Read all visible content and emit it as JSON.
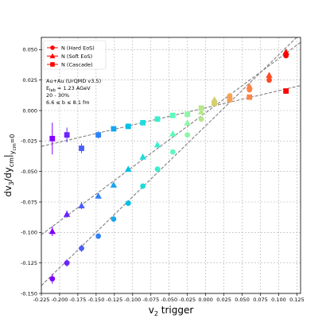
{
  "chart_data": {
    "type": "scatter",
    "xlabel": "v_2 trigger",
    "ylabel": "dv_3/dy_cm|_{y_cm}=0",
    "xlim": [
      -0.225,
      0.13
    ],
    "ylim": [
      -0.15,
      0.06
    ],
    "xticks": [
      "-0.225",
      "-0.200",
      "-0.175",
      "-0.150",
      "-0.125",
      "-0.100",
      "-0.075",
      "-0.050",
      "-0.025",
      "0.000",
      "0.025",
      "0.050",
      "0.075",
      "0.100",
      "0.125"
    ],
    "yticks": [
      "0.050",
      "0.025",
      "0.000",
      "-0.025",
      "-0.050",
      "-0.075",
      "-0.100",
      "-0.125",
      "-0.150"
    ],
    "grid": true,
    "legend_position": "top-left",
    "annotation": [
      "Au+Au (UrQMD v3.5)",
      "E_lab = 1.23 AGeV",
      "20 - 30%",
      "6.6 ≤ b ≤ 8.1 fm"
    ],
    "x": [
      -0.21,
      -0.19,
      -0.17,
      -0.147,
      -0.126,
      -0.106,
      -0.086,
      -0.066,
      -0.045,
      -0.025,
      -0.006,
      0.012,
      0.033,
      0.06,
      0.087,
      0.11
    ],
    "series": [
      {
        "name": "N (Hard EoS)",
        "marker": "circle",
        "y": [
          -0.138,
          -0.125,
          -0.113,
          -0.103,
          -0.089,
          -0.076,
          -0.062,
          -0.048,
          -0.034,
          -0.02,
          -0.007,
          0.006,
          0.012,
          0.017,
          0.025,
          0.045
        ],
        "yerr": [
          0.004,
          0.003,
          0.003,
          0.002,
          0.002,
          0.002,
          0.002,
          0.002,
          0.002,
          0.002,
          0.002,
          0.002,
          0.002,
          0.002,
          0.002,
          0.002
        ]
      },
      {
        "name": "N (Soft EoS)",
        "marker": "triangle",
        "y": [
          -0.099,
          -0.085,
          -0.078,
          -0.07,
          -0.061,
          -0.048,
          -0.038,
          -0.028,
          -0.019,
          -0.01,
          -0.001,
          0.009,
          0.02,
          0.029,
          0.048
        ],
        "x_index": [
          0,
          1,
          2,
          3,
          4,
          5,
          6,
          7,
          8,
          9,
          10,
          11,
          13,
          14,
          15
        ],
        "yerr": [
          0.004,
          0.003,
          0.003,
          0.002,
          0.002,
          0.002,
          0.002,
          0.002,
          0.002,
          0.002,
          0.002,
          0.002,
          0.002,
          0.002,
          0.002
        ]
      },
      {
        "name": "N (Cascade)",
        "marker": "square",
        "y": [
          -0.023,
          -0.02,
          -0.031,
          -0.02,
          -0.015,
          -0.013,
          -0.01,
          -0.007,
          -0.004,
          -0.003,
          0.002,
          0.006,
          0.009,
          0.011,
          0.016
        ],
        "x_index": [
          0,
          1,
          2,
          3,
          4,
          5,
          6,
          7,
          8,
          9,
          10,
          11,
          12,
          13,
          15
        ],
        "yerr": [
          0.013,
          0.006,
          0.004,
          0.003,
          0.002,
          0.002,
          0.002,
          0.002,
          0.002,
          0.002,
          0.002,
          0.002,
          0.002,
          0.002,
          0.002
        ]
      }
    ],
    "point_colors": [
      "#7e00ff",
      "#6c22ff",
      "#4a5dfc",
      "#2f81f7",
      "#17a6ef",
      "#00c0e7",
      "#1fdcdb",
      "#39eecf",
      "#60f8bd",
      "#8cf6a4",
      "#b4e889",
      "#d6cf6e",
      "#f6a254",
      "#ff8347",
      "#ff4a26",
      "#ff0000"
    ],
    "fit_color": "#808080"
  }
}
